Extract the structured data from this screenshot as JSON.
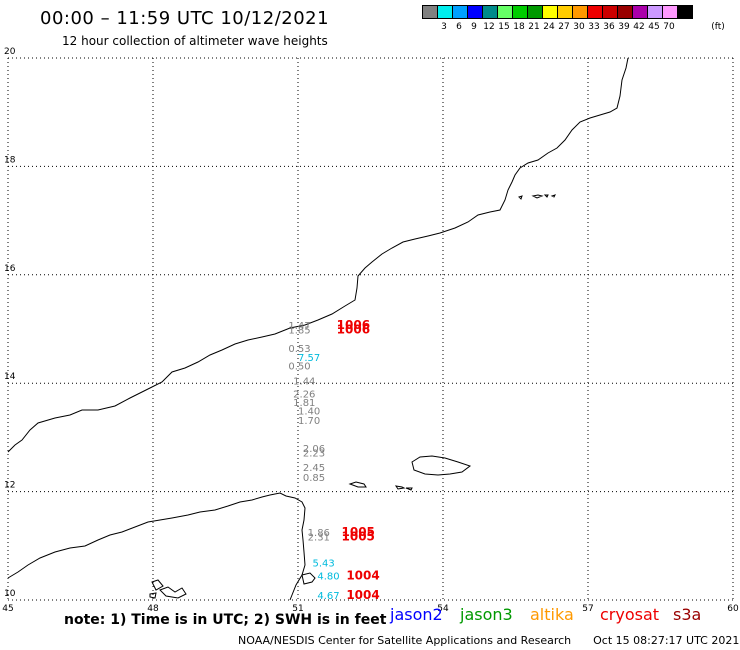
{
  "header": {
    "title": "00:00 – 11:59 UTC 10/12/2021",
    "subtitle": "12 hour collection of altimeter wave heights"
  },
  "legend": {
    "unit": "(ft)",
    "bins": [
      {
        "color": "#808080",
        "label": ""
      },
      {
        "color": "#00eeee",
        "label": "3"
      },
      {
        "color": "#00a0ff",
        "label": "6"
      },
      {
        "color": "#0000ff",
        "label": "9"
      },
      {
        "color": "#008b8b",
        "label": "12"
      },
      {
        "color": "#66ff66",
        "label": "15"
      },
      {
        "color": "#00cc00",
        "label": "18"
      },
      {
        "color": "#009900",
        "label": "21"
      },
      {
        "color": "#ffff00",
        "label": "24"
      },
      {
        "color": "#ffcc00",
        "label": "27"
      },
      {
        "color": "#ff9900",
        "label": "30"
      },
      {
        "color": "#ee0000",
        "label": "33"
      },
      {
        "color": "#cc0000",
        "label": "36"
      },
      {
        "color": "#990000",
        "label": "39"
      },
      {
        "color": "#aa00aa",
        "label": "42"
      },
      {
        "color": "#cc99ff",
        "label": "45"
      },
      {
        "color": "#ff99ff",
        "label": "70"
      },
      {
        "color": "#000000",
        "label": ""
      }
    ]
  },
  "map": {
    "lon_ticks": [
      "45",
      "48",
      "51",
      "54",
      "57",
      "60"
    ],
    "lat_ticks": [
      "20",
      "18",
      "16",
      "14",
      "12",
      "10"
    ],
    "observations": [
      {
        "lon": 50.8,
        "lat": 15.0,
        "value": "1.47",
        "color": "#808080"
      },
      {
        "lon": 50.8,
        "lat": 14.92,
        "value": "1.85",
        "color": "#808080"
      },
      {
        "lon": 51.8,
        "lat": 15.0,
        "value": "1006",
        "color": "#ee0000"
      },
      {
        "lon": 51.8,
        "lat": 14.92,
        "value": "1006",
        "color": "#ee0000"
      },
      {
        "lon": 50.8,
        "lat": 14.58,
        "value": "0.53",
        "color": "#808080"
      },
      {
        "lon": 51.0,
        "lat": 14.41,
        "value": "7.57",
        "color": "#00bbdd"
      },
      {
        "lon": 50.8,
        "lat": 14.25,
        "value": "0.50",
        "color": "#808080"
      },
      {
        "lon": 50.9,
        "lat": 13.98,
        "value": "1.44",
        "color": "#808080"
      },
      {
        "lon": 50.9,
        "lat": 13.74,
        "value": "2.26",
        "color": "#808080"
      },
      {
        "lon": 50.9,
        "lat": 13.58,
        "value": "1.81",
        "color": "#808080"
      },
      {
        "lon": 51.0,
        "lat": 13.42,
        "value": "1.40",
        "color": "#808080"
      },
      {
        "lon": 51.0,
        "lat": 13.25,
        "value": "1.70",
        "color": "#808080"
      },
      {
        "lon": 51.1,
        "lat": 12.73,
        "value": "2.06",
        "color": "#808080"
      },
      {
        "lon": 51.1,
        "lat": 12.65,
        "value": "2.23",
        "color": "#808080"
      },
      {
        "lon": 51.1,
        "lat": 12.38,
        "value": "2.45",
        "color": "#808080"
      },
      {
        "lon": 51.1,
        "lat": 12.2,
        "value": "0.85",
        "color": "#808080"
      },
      {
        "lon": 51.2,
        "lat": 11.18,
        "value": "1.86",
        "color": "#808080"
      },
      {
        "lon": 51.2,
        "lat": 11.1,
        "value": "2.31",
        "color": "#808080"
      },
      {
        "lon": 51.9,
        "lat": 11.18,
        "value": "1005",
        "color": "#ee0000"
      },
      {
        "lon": 51.9,
        "lat": 11.1,
        "value": "1005",
        "color": "#ee0000"
      },
      {
        "lon": 51.3,
        "lat": 10.62,
        "value": "5.43",
        "color": "#00bbdd"
      },
      {
        "lon": 51.4,
        "lat": 10.38,
        "value": "4.80",
        "color": "#00bbdd"
      },
      {
        "lon": 52.0,
        "lat": 10.38,
        "value": "1004",
        "color": "#ee0000"
      },
      {
        "lon": 51.4,
        "lat": 10.02,
        "value": "4.67",
        "color": "#00bbdd"
      },
      {
        "lon": 52.0,
        "lat": 10.02,
        "value": "1004",
        "color": "#ee0000"
      }
    ]
  },
  "footer": {
    "note": "note: 1) Time is in UTC; 2) SWH is in feet",
    "satellites": [
      {
        "name": "jason2",
        "color": "#0000ff"
      },
      {
        "name": "jason3",
        "color": "#009900"
      },
      {
        "name": "altika",
        "color": "#ff9900"
      },
      {
        "name": "cryosat",
        "color": "#ee0000"
      },
      {
        "name": "s3a",
        "color": "#990000"
      }
    ],
    "credit": "NOAA/NESDIS Center for Satellite Applications and Research",
    "timestamp": "Oct 15 08:27:17 UTC 2021"
  }
}
